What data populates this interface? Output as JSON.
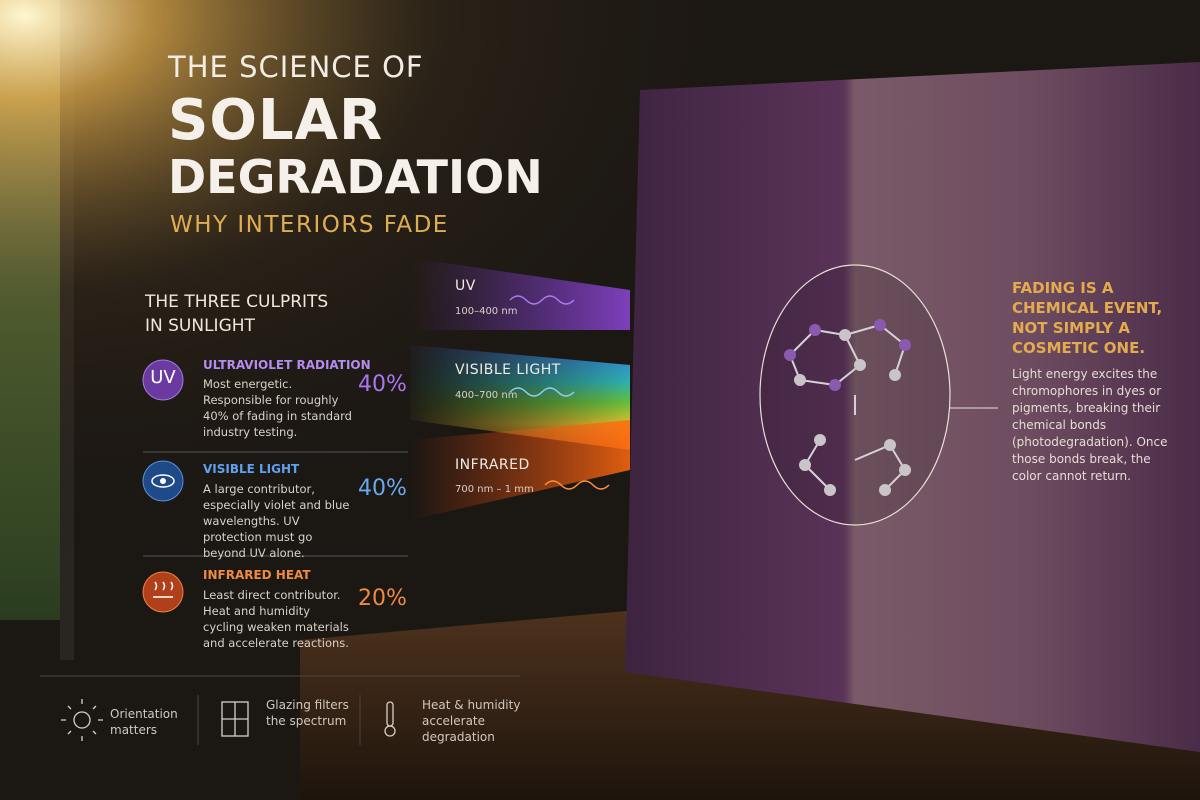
{
  "header": {
    "eyebrow": "THE SCIENCE OF",
    "title_line1": "SOLAR",
    "title_line2": "DEGRADATION",
    "subtitle": "WHY INTERIORS FADE"
  },
  "culprits": {
    "heading_line1": "THE THREE CULPRITS",
    "heading_line2": "IN SUNLIGHT",
    "items": [
      {
        "icon": "UV",
        "name": "ULTRAVIOLET RADIATION",
        "description": "Most energetic. Responsible for roughly 40% of fading in standard industry testing.",
        "share": "40%"
      },
      {
        "name": "VISIBLE LIGHT",
        "description": "A large contributor, especially violet and blue wavelengths. UV protection must go beyond UV alone.",
        "share": "40%"
      },
      {
        "name": "INFRARED HEAT",
        "description": "Least direct contributor. Heat and humidity cycling weaken materials and accelerate reactions.",
        "share": "20%"
      }
    ]
  },
  "spectrum": {
    "bands": [
      {
        "label": "UV",
        "range": "100–400 nm"
      },
      {
        "label": "VISIBLE LIGHT",
        "range": "400–700 nm"
      },
      {
        "label": "INFRARED",
        "range": "700 nm – 1 mm"
      }
    ]
  },
  "callout": {
    "headline": "FADING IS A CHEMICAL EVENT, NOT SIMPLY A COSMETIC ONE.",
    "body": "Light energy excites the chromophores in dyes or pigments, breaking their chemical bonds (photodegradation). Once those bonds break, the color cannot return."
  },
  "footer": {
    "items": [
      "Orientation matters",
      "Glazing filters the spectrum",
      "Heat & humidity accelerate degradation"
    ]
  }
}
